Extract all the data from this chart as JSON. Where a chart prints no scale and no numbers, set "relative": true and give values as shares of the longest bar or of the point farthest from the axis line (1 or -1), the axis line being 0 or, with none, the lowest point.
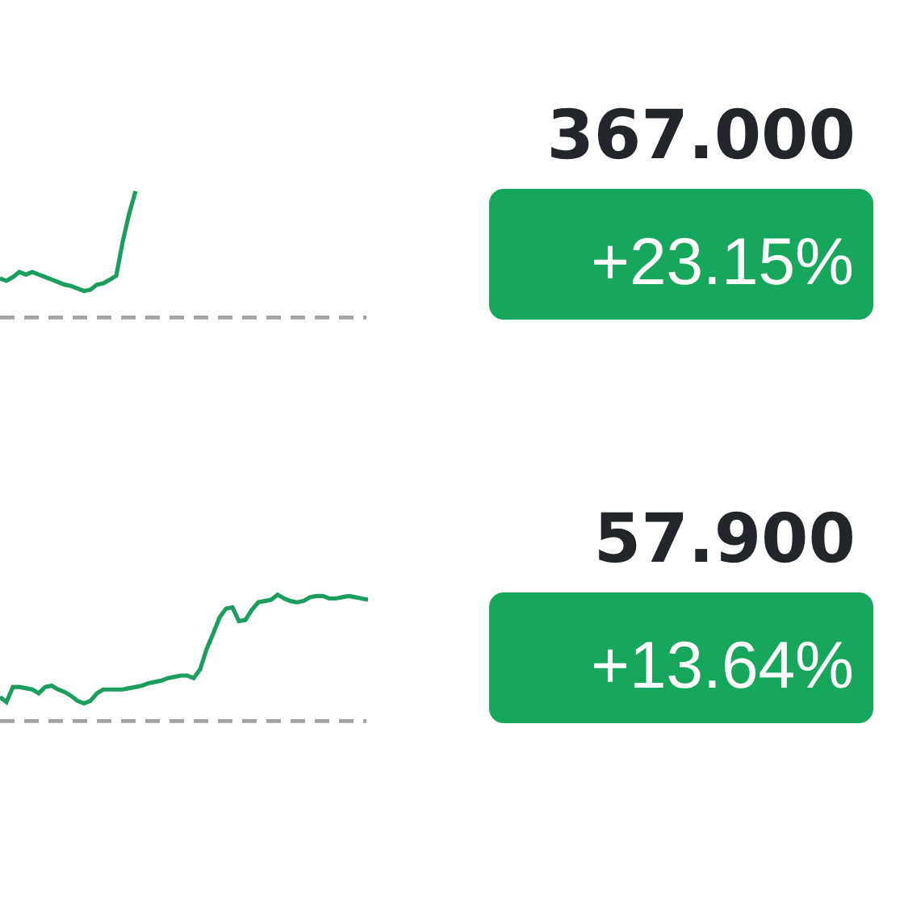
{
  "chart_data": [
    {
      "type": "line",
      "relative": true,
      "categories": [
        null,
        null,
        null,
        null,
        null,
        null,
        null,
        null,
        null,
        null,
        null,
        null,
        null,
        null,
        null,
        null,
        null,
        null,
        null,
        null,
        null,
        null,
        null,
        null,
        null,
        null,
        null,
        null,
        null,
        null,
        null,
        null,
        null,
        null,
        null,
        null,
        null,
        null,
        null,
        null,
        null,
        null,
        null,
        null,
        null,
        null,
        null,
        null,
        null,
        null,
        null,
        null,
        null,
        null,
        null,
        null,
        null,
        null
      ],
      "series": [
        {
          "color": "#1b9d5e",
          "values": [
            0.31,
            0.29,
            0.32,
            0.36,
            0.34,
            0.36,
            0.34,
            0.32,
            0.3,
            0.28,
            0.26,
            0.25,
            0.23,
            0.21,
            0.22,
            0.26,
            0.27,
            0.3,
            0.33,
            0.6,
            0.82,
            1,
            null,
            null,
            null,
            null,
            null,
            null,
            null,
            null,
            null,
            null,
            null,
            null,
            null,
            null,
            null,
            null,
            null,
            null,
            null,
            null,
            null,
            null,
            null,
            null,
            null,
            null,
            null,
            null,
            null,
            null,
            null,
            null,
            null,
            null,
            null,
            null
          ]
        }
      ],
      "ref_lines": [
        {
          "axis": "y",
          "value": 0,
          "color": "#a3a3a3",
          "line_style": "dashed"
        }
      ]
    },
    {
      "type": "other",
      "color": "#16a75c",
      "annotations": [
        "367.000",
        "+23.15%"
      ]
    },
    {
      "type": "line",
      "relative": true,
      "categories": [
        null,
        null,
        null,
        null,
        null,
        null,
        null,
        null,
        null,
        null,
        null,
        null,
        null,
        null,
        null,
        null,
        null,
        null,
        null,
        null,
        null,
        null,
        null,
        null,
        null,
        null,
        null,
        null,
        null,
        null,
        null,
        null,
        null,
        null,
        null,
        null,
        null,
        null,
        null,
        null,
        null,
        null,
        null,
        null,
        null,
        null,
        null,
        null,
        null,
        null,
        null,
        null,
        null,
        null,
        null,
        null,
        null,
        null
      ],
      "series": [
        {
          "color": "#1b9d5e",
          "values": [
            0.19,
            0.15,
            0.27,
            0.27,
            0.26,
            0.25,
            0.22,
            0.27,
            0.28,
            0.25,
            0.23,
            0.2,
            0.16,
            0.14,
            0.16,
            0.22,
            0.25,
            0.25,
            0.25,
            0.25,
            0.26,
            0.27,
            0.28,
            0.3,
            0.31,
            0.32,
            0.34,
            0.35,
            0.36,
            0.36,
            0.34,
            0.41,
            0.57,
            0.69,
            0.82,
            0.89,
            0.9,
            0.79,
            0.8,
            0.88,
            0.94,
            0.95,
            0.96,
            1,
            0.97,
            0.95,
            0.94,
            0.95,
            0.98,
            0.99,
            0.99,
            0.97,
            0.97,
            0.98,
            0.99,
            0.98,
            0.97,
            0.96
          ]
        }
      ],
      "ref_lines": [
        {
          "axis": "y",
          "value": 0,
          "color": "#a3a3a3",
          "line_style": "dashed"
        }
      ]
    },
    {
      "type": "other",
      "color": "#16a75c",
      "annotations": [
        "57.900",
        "+13.64%"
      ]
    }
  ]
}
